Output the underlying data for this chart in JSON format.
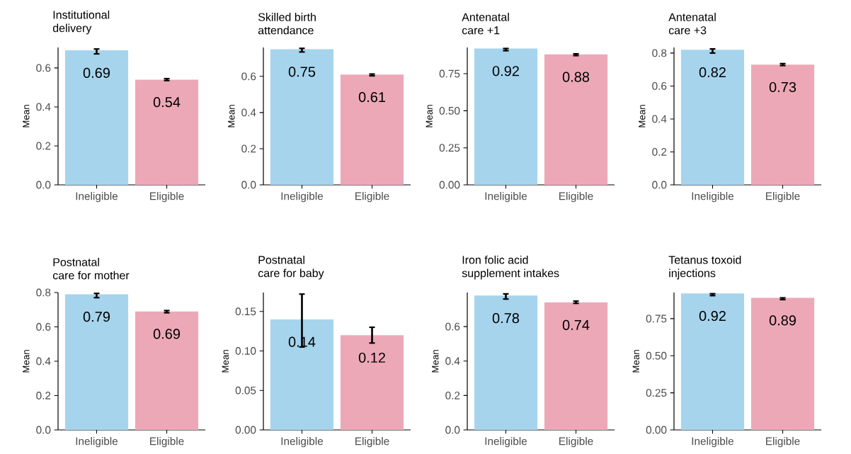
{
  "chart_data": [
    {
      "type": "bar",
      "title": "Institutional\ndelivery",
      "ylabel": "Mean",
      "categories": [
        "Ineligible",
        "Eligible"
      ],
      "values": [
        0.69,
        0.54
      ],
      "colors": [
        "#a6d4ed",
        "#eda8b7"
      ],
      "errors": [
        [
          0.672,
          0.697
        ],
        [
          0.535,
          0.545
        ]
      ],
      "ylim": [
        0,
        0.705
      ],
      "yticks": [
        {
          "value": 0,
          "label": "0.0"
        },
        0.2,
        0.4,
        0.6
      ],
      "data_labels": true,
      "grid": false
    },
    {
      "type": "bar",
      "title": "Skilled birth\nattendance",
      "ylabel": "Mean",
      "categories": [
        "Ineligible",
        "Eligible"
      ],
      "values": [
        0.75,
        0.61
      ],
      "colors": [
        "#a6d4ed",
        "#eda8b7"
      ],
      "errors": [
        [
          0.735,
          0.755
        ],
        [
          0.603,
          0.613
        ]
      ],
      "ylim": [
        0,
        0.76
      ],
      "yticks": [
        {
          "value": 0,
          "label": "0.0"
        },
        0.2,
        0.4,
        0.6
      ],
      "data_labels": true,
      "grid": false
    },
    {
      "type": "bar",
      "title": "Antenatal\ncare +1",
      "ylabel": "Mean",
      "categories": [
        "Ineligible",
        "Eligible"
      ],
      "values": [
        0.92,
        0.88
      ],
      "colors": [
        "#a6d4ed",
        "#eda8b7"
      ],
      "errors": [
        [
          0.905,
          0.92
        ],
        [
          0.872,
          0.884
        ]
      ],
      "ylim": [
        0,
        0.927
      ],
      "yticks": [
        {
          "value": 0,
          "label": "0.00"
        },
        0.25,
        {
          "value": 0.5,
          "label": "0.50"
        },
        0.75
      ],
      "data_labels": true,
      "grid": false
    },
    {
      "type": "bar",
      "title": "Antenatal\ncare +3",
      "ylabel": "Mean",
      "categories": [
        "Ineligible",
        "Eligible"
      ],
      "values": [
        0.82,
        0.73
      ],
      "colors": [
        "#a6d4ed",
        "#eda8b7"
      ],
      "errors": [
        [
          0.8,
          0.825
        ],
        [
          0.724,
          0.736
        ]
      ],
      "ylim": [
        0,
        0.834
      ],
      "yticks": [
        {
          "value": 0,
          "label": "0.0"
        },
        0.2,
        0.4,
        0.6,
        0.8
      ],
      "data_labels": true,
      "grid": false
    },
    {
      "type": "bar",
      "title": "Postnatal\ncare for mother",
      "ylabel": "Mean",
      "categories": [
        "Ineligible",
        "Eligible"
      ],
      "values": [
        0.79,
        0.69
      ],
      "colors": [
        "#a6d4ed",
        "#eda8b7"
      ],
      "errors": [
        [
          0.77,
          0.795
        ],
        [
          0.682,
          0.695
        ]
      ],
      "ylim": [
        0,
        0.8
      ],
      "yticks": [
        {
          "value": 0,
          "label": "0.0"
        },
        0.2,
        0.4,
        0.6,
        0.8
      ],
      "data_labels": true,
      "grid": false
    },
    {
      "type": "bar",
      "title": "Postnatal\ncare for baby",
      "ylabel": "Mean",
      "categories": [
        "Ineligible",
        "Eligible"
      ],
      "values": [
        0.14,
        0.12
      ],
      "colors": [
        "#a6d4ed",
        "#eda8b7"
      ],
      "errors": [
        [
          0.105,
          0.172
        ],
        [
          0.11,
          0.13
        ]
      ],
      "ylim": [
        0,
        0.174
      ],
      "yticks": [
        {
          "value": 0,
          "label": "0.00"
        },
        0.05,
        {
          "value": 0.1,
          "label": "0.10"
        },
        0.15
      ],
      "data_labels": true,
      "grid": false
    },
    {
      "type": "bar",
      "title": "Iron folic acid\nsupplement intakes",
      "ylabel": "Mean",
      "categories": [
        "Ineligible",
        "Eligible"
      ],
      "values": [
        0.78,
        0.74
      ],
      "colors": [
        "#a6d4ed",
        "#eda8b7"
      ],
      "errors": [
        [
          0.76,
          0.79
        ],
        [
          0.735,
          0.748
        ]
      ],
      "ylim": [
        0,
        0.798
      ],
      "yticks": [
        {
          "value": 0,
          "label": "0.0"
        },
        0.2,
        0.4,
        0.6
      ],
      "data_labels": true,
      "grid": false
    },
    {
      "type": "bar",
      "title": "Tetanus toxoid\ninjections",
      "ylabel": "Mean",
      "categories": [
        "Ineligible",
        "Eligible"
      ],
      "values": [
        0.92,
        0.89
      ],
      "colors": [
        "#a6d4ed",
        "#eda8b7"
      ],
      "errors": [
        [
          0.905,
          0.918
        ],
        [
          0.878,
          0.89
        ]
      ],
      "ylim": [
        0,
        0.926
      ],
      "yticks": [
        {
          "value": 0,
          "label": "0.00"
        },
        0.25,
        {
          "value": 0.5,
          "label": "0.50"
        },
        0.75
      ],
      "data_labels": true,
      "grid": false
    }
  ]
}
